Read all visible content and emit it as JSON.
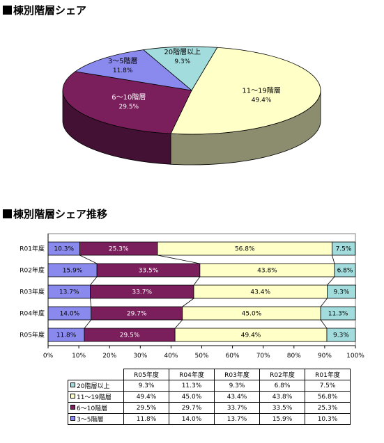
{
  "titles": {
    "pie": "棟別階層シェア",
    "bar": "棟別階層シェア推移"
  },
  "colors": {
    "c20": "#a3dcdc",
    "c11_19": "#ffffc8",
    "c6_10": "#7a1f5c",
    "c3_5": "#8a8aee"
  },
  "chart_data": [
    {
      "type": "pie",
      "slices": [
        {
          "label": "20階層以上",
          "value": 9.3,
          "value_label": "9.3%",
          "color": "#a3dcdc"
        },
        {
          "label": "11～19階層",
          "value": 49.4,
          "value_label": "49.4%",
          "color": "#ffffc8"
        },
        {
          "label": "6～10階層",
          "value": 29.5,
          "value_label": "29.5%",
          "color": "#7a1f5c"
        },
        {
          "label": "3～5階層",
          "value": 11.8,
          "value_label": "11.8%",
          "color": "#8a8aee"
        }
      ]
    },
    {
      "type": "bar",
      "stacked": true,
      "percent_stacked": true,
      "orientation": "horizontal",
      "categories": [
        "R01年度",
        "R02年度",
        "R03年度",
        "R04年度",
        "R05年度"
      ],
      "series": [
        {
          "name": "3～5階層",
          "color": "#8a8aee",
          "values": [
            10.3,
            15.9,
            13.7,
            14.0,
            11.8
          ],
          "labels": [
            "10.3%",
            "15.9%",
            "13.7%",
            "14.0%",
            "11.8%"
          ]
        },
        {
          "name": "6～10階層",
          "color": "#7a1f5c",
          "values": [
            25.3,
            33.5,
            33.7,
            29.7,
            29.5
          ],
          "labels": [
            "25.3%",
            "33.5%",
            "33.7%",
            "29.7%",
            "29.5%"
          ]
        },
        {
          "name": "11～19階層",
          "color": "#ffffc8",
          "values": [
            56.8,
            43.8,
            43.4,
            45.0,
            49.4
          ],
          "labels": [
            "56.8%",
            "43.8%",
            "43.4%",
            "45.0%",
            "49.4%"
          ]
        },
        {
          "name": "20階層以上",
          "color": "#a3dcdc",
          "values": [
            7.5,
            6.8,
            9.3,
            11.3,
            9.3
          ],
          "labels": [
            "7.5%",
            "6.8%",
            "9.3%",
            "11.3%",
            "9.3%"
          ]
        }
      ],
      "x_ticks": [
        "0%",
        "10%",
        "20%",
        "30%",
        "40%",
        "50%",
        "60%",
        "70%",
        "80%",
        "90%",
        "100%"
      ],
      "xlim": [
        0,
        100
      ]
    },
    {
      "type": "table",
      "columns": [
        "R05年度",
        "R04年度",
        "R03年度",
        "R02年度",
        "R01年度"
      ],
      "rows": [
        {
          "label": "20階層以上",
          "color": "#a3dcdc",
          "values": [
            "9.3%",
            "11.3%",
            "9.3%",
            "6.8%",
            "7.5%"
          ]
        },
        {
          "label": "11～19階層",
          "color": "#ffffc8",
          "values": [
            "49.4%",
            "45.0%",
            "43.4%",
            "43.8%",
            "56.8%"
          ]
        },
        {
          "label": "6～10階層",
          "color": "#7a1f5c",
          "values": [
            "29.5%",
            "29.7%",
            "33.7%",
            "33.5%",
            "25.3%"
          ]
        },
        {
          "label": "3～5階層",
          "color": "#8a8aee",
          "values": [
            "11.8%",
            "14.0%",
            "13.7%",
            "15.9%",
            "10.3%"
          ]
        }
      ]
    }
  ]
}
